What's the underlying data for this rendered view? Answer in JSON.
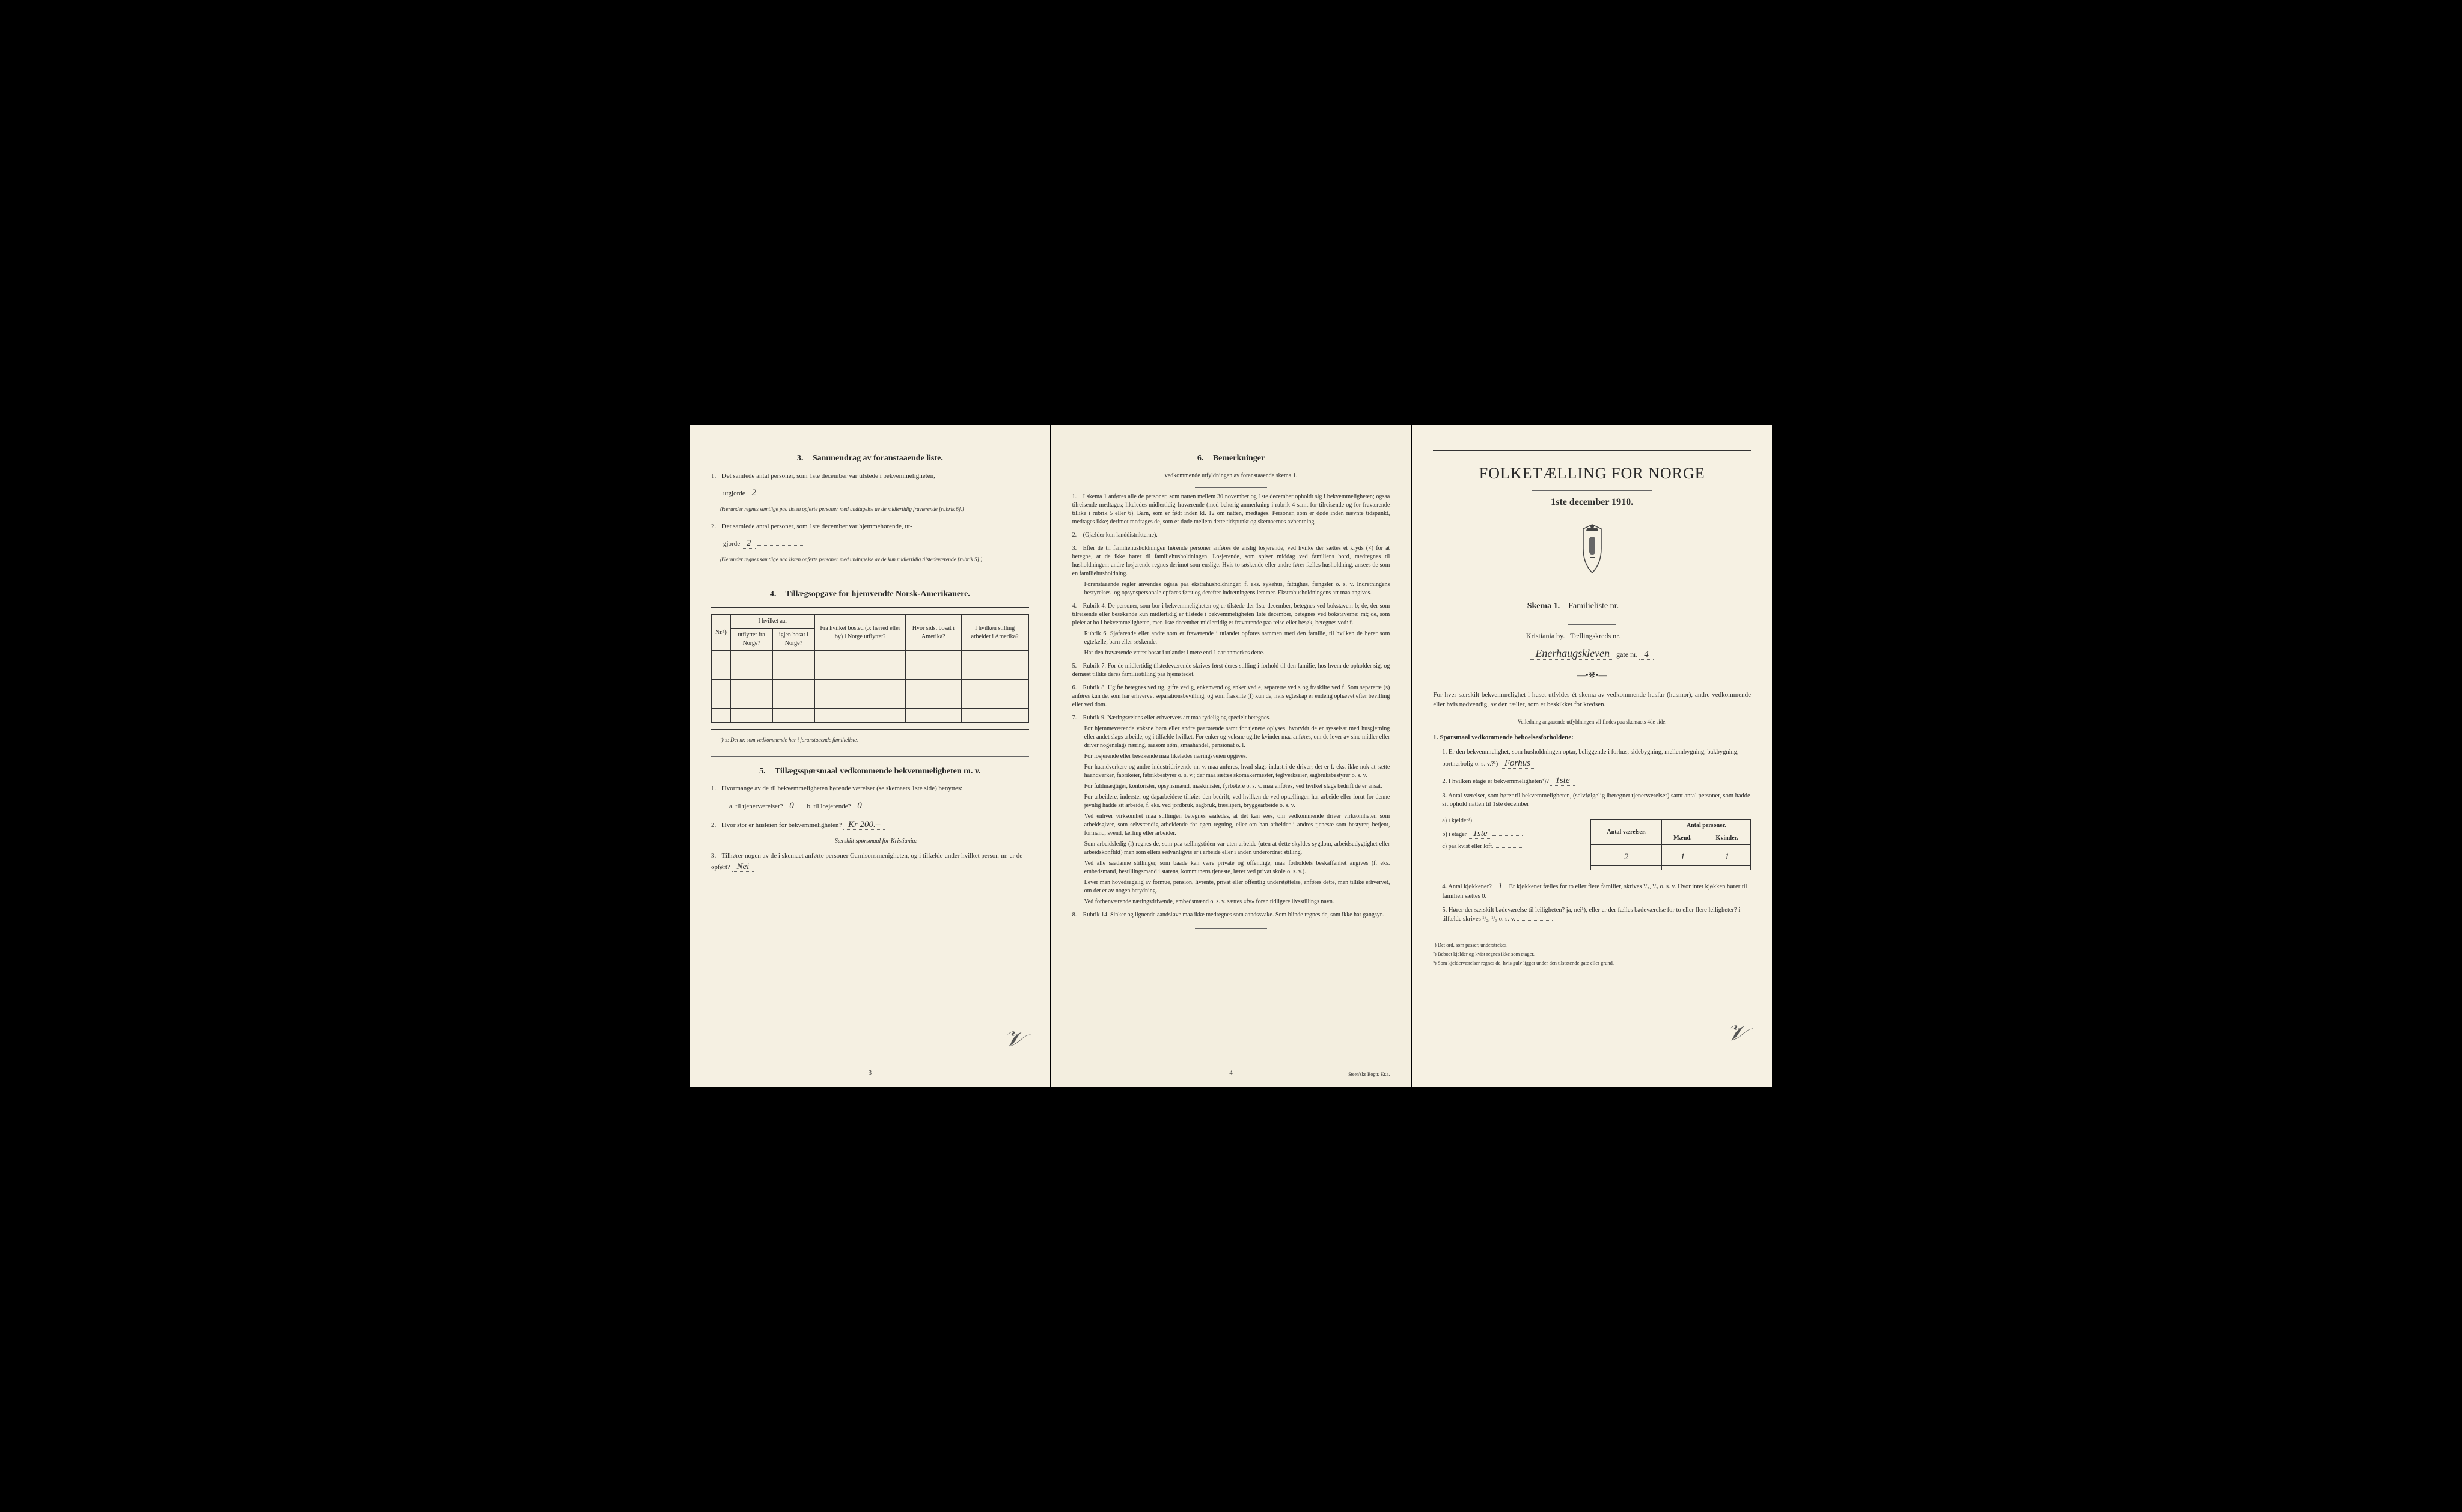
{
  "colors": {
    "paper": "#f4efe0",
    "text": "#2a2a2a",
    "border": "#333333",
    "background": "#000000"
  },
  "left": {
    "s3": {
      "title": "Sammendrag av foranstaaende liste.",
      "num": "3.",
      "item1": "Det samlede antal personer, som 1ste december var tilstede i bekvemmeligheten,",
      "item1_cont": "utgjorde",
      "val1": "2",
      "note1": "(Herunder regnes samtlige paa listen opførte personer med undtagelse av de midlertidig fraværende [rubrik 6].)",
      "item2": "Det samlede antal personer, som 1ste december var hjemmehørende, ut-",
      "item2_cont": "gjorde",
      "val2": "2",
      "note2": "(Herunder regnes samtlige paa listen opførte personer med undtagelse av de kun midlertidig tilstedeværende [rubrik 5].)"
    },
    "s4": {
      "title": "Tillægsopgave for hjemvendte Norsk-Amerikanere.",
      "num": "4.",
      "headers": {
        "nr": "Nr.¹)",
        "aar": "I hvilket aar",
        "utflyttet": "utflyttet fra Norge?",
        "bosat": "igjen bosat i Norge?",
        "bosted": "Fra hvilket bosted (ɔ: herred eller by) i Norge utflyttet?",
        "amerika": "Hvor sidst bosat i Amerika?",
        "stilling": "I hvilken stilling arbeidet i Amerika?"
      },
      "footnote": "¹) ɔ: Det nr. som vedkommende har i foranstaaende familieliste."
    },
    "s5": {
      "title": "Tillægsspørsmaal vedkommende bekvemmeligheten m. v.",
      "num": "5.",
      "q1": "Hvormange av de til bekvemmeligheten hørende værelser (se skemaets 1ste side) benyttes:",
      "q1a": "a.  til tjenerværelser?",
      "q1a_val": "0",
      "q1b": "b.  til losjerende?",
      "q1b_val": "0",
      "q2": "Hvor stor er husleien for bekvemmeligheten?",
      "q2_val": "Kr 200.–",
      "q2_note": "Særskilt spørsmaal for Kristiania:",
      "q3": "Tilhører nogen av de i skemaet anførte personer Garnisonsmenigheten, og i tilfælde under hvilket person-nr. er de opført?",
      "q3_val": "Nei"
    },
    "page_num": "3"
  },
  "middle": {
    "title": "Bemerkninger",
    "num": "6.",
    "subtitle": "vedkommende utfyldningen av foranstaaende skema 1.",
    "remarks": [
      {
        "n": "1.",
        "text": "I skema 1 anføres alle de personer, som natten mellem 30 november og 1ste december opholdt sig i bekvemmeligheten; ogsaa tilreisende medtages; likeledes midlertidig fraværende (med behørig anmerkning i rubrik 4 samt for tilreisende og for fraværende tillike i rubrik 5 eller 6). Barn, som er født inden kl. 12 om natten, medtages. Personer, som er døde inden nævnte tidspunkt, medtages ikke; derimot medtages de, som er døde mellem dette tidspunkt og skemaernes avhentning."
      },
      {
        "n": "2.",
        "text": "(Gjælder kun landdistrikterne)."
      },
      {
        "n": "3.",
        "text": "Efter de til familiehusholdningen hørende personer anføres de enslig losjerende, ved hvilke der sættes et kryds (×) for at betegne, at de ikke hører til familiehusholdningen. Losjerende, som spiser middag ved familiens bord, medregnes til husholdningen; andre losjerende regnes derimot som enslige. Hvis to søskende eller andre fører fælles husholdning, ansees de som en familiehusholdning.",
        "indent": "Foranstaaende regler anvendes ogsaa paa ekstrahusholdninger, f. eks. sykehus, fattighus, fængsler o. s. v. Indretningens bestyrelses- og opsynspersonale opføres først og derefter indretningens lemmer. Ekstrahusholdningens art maa angives."
      },
      {
        "n": "4.",
        "text": "Rubrik 4. De personer, som bor i bekvemmeligheten og er tilstede der 1ste december, betegnes ved bokstaven: b; de, der som tilreisende eller besøkende kun midlertidig er tilstede i bekvemmeligheten 1ste december, betegnes ved bokstaverne: mt; de, som pleier at bo i bekvemmeligheten, men 1ste december midlertidig er fraværende paa reise eller besøk, betegnes ved: f.",
        "indent": "Rubrik 6. Sjøfarende eller andre som er fraværende i utlandet opføres sammen med den familie, til hvilken de hører som egtefælle, barn eller søskende.\nHar den fraværende været bosat i utlandet i mere end 1 aar anmerkes dette."
      },
      {
        "n": "5.",
        "text": "Rubrik 7. For de midlertidig tilstedeværende skrives først deres stilling i forhold til den familie, hos hvem de opholder sig, og dernæst tillike deres familiestilling paa hjemstedet."
      },
      {
        "n": "6.",
        "text": "Rubrik 8. Ugifte betegnes ved ug, gifte ved g, enkemænd og enker ved e, separerte ved s og fraskilte ved f. Som separerte (s) anføres kun de, som har erhvervet separationsbevilling, og som fraskilte (f) kun de, hvis egteskap er endelig ophævet efter bevilling eller ved dom."
      },
      {
        "n": "7.",
        "text": "Rubrik 9. Næringsveiens eller erhvervets art maa tydelig og specielt betegnes.",
        "indent": "For hjemmeværende voksne børn eller andre paarørende samt for tjenere oplyses, hvorvidt de er sysselsat med husgjerning eller andet slags arbeide, og i tilfælde hvilket. For enker og voksne ugifte kvinder maa anføres, om de lever av sine midler eller driver nogenslags næring, saasom søm, smaahandel, pensionat o. l.\nFor losjerende eller besøkende maa likeledes næringsveien opgives.\nFor haandverkere og andre industridrivende m. v. maa anføres, hvad slags industri de driver; det er f. eks. ikke nok at sætte haandverker, fabrikeier, fabrikbestyrer o. s. v.; der maa sættes skomakermester, teglverkseier, sagbruksbestyrer o. s. v.\nFor fuldmægtiger, kontorister, opsynsmænd, maskinister, fyrbøtere o. s. v. maa anføres, ved hvilket slags bedrift de er ansat.\nFor arbeidere, inderster og dagarbeidere tilføies den bedrift, ved hvilken de ved optællingen har arbeide eller forut for denne jevnlig hadde sit arbeide, f. eks. ved jordbruk, sagbruk, træsliperi, bryggearbeide o. s. v.\nVed enhver virksomhet maa stillingen betegnes saaledes, at det kan sees, om vedkommende driver virksomheten som arbeidsgiver, som selvstændig arbeidende for egen regning, eller om han arbeider i andres tjeneste som bestyrer, betjent, formand, svend, lærling eller arbeider.\nSom arbeidsledig (l) regnes de, som paa tællingstiden var uten arbeide (uten at dette skyldes sygdom, arbeidsudygtighet eller arbeidskonflikt) men som ellers sedvanligvis er i arbeide eller i anden underordnet stilling.\nVed alle saadanne stillinger, som baade kan være private og offentlige, maa forholdets beskaffenhet angives (f. eks. embedsmand, bestillingsmand i statens, kommunens tjeneste, lærer ved privat skole o. s. v.).\nLever man hovedsagelig av formue, pension, livrente, privat eller offentlig understøttelse, anføres dette, men tillike erhvervet, om det er av nogen betydning.\nVed forhenværende næringsdrivende, embedsmænd o. s. v. sættes «fv» foran tidligere livsstillings navn."
      },
      {
        "n": "8.",
        "text": "Rubrik 14. Sinker og lignende aandsløve maa ikke medregnes som aandssvake. Som blinde regnes de, som ikke har gangsyn."
      }
    ],
    "page_num": "4",
    "printer": "Steen'ske Bogtr. Kr.a."
  },
  "right": {
    "title": "FOLKETÆLLING FOR NORGE",
    "date": "1ste december 1910.",
    "skema": "Skema 1.",
    "skema_label": "Familieliste nr.",
    "city": "Kristiania by.",
    "kreds": "Tællingskreds nr.",
    "gate_val": "Enerhaugskleven",
    "gate_suffix": "gate nr.",
    "gate_num": "4",
    "intro": "For hver særskilt bekvemmelighet i huset utfyldes ét skema av vedkommende husfar (husmor), andre vedkommende eller hvis nødvendig, av den tæller, som er beskikket for kredsen.",
    "intro_note": "Veiledning angaaende utfyldningen vil findes paa skemaets 4de side.",
    "q1_title": "Spørsmaal vedkommende beboelsesforholdene:",
    "q1_num": "1.",
    "q1_1": "Er den bekvemmelighet, som husholdningen optar, beliggende i forhus, sidebygning, mellembygning, bakbygning, portnerbolig o. s. v.?¹)",
    "q1_1_val": "Forhus",
    "q1_2": "I hvilken etage er bekvemmeligheten³)?",
    "q1_2_val": "1ste",
    "q1_3": "Antal værelser, som hører til bekvemmeligheten, (selvfølgelig iberegnet tjenerværelser) samt antal personer, som hadde sit ophold natten til 1ste december",
    "table": {
      "h1": "Antal værelser.",
      "h2": "Antal personer.",
      "h2a": "Mænd.",
      "h2b": "Kvinder.",
      "row_a": "a) i kjelder³)",
      "row_b": "b) i etager",
      "row_b_etage": "1ste",
      "row_b_vaer": "2",
      "row_b_m": "1",
      "row_b_k": "1",
      "row_c": "c) paa kvist eller loft"
    },
    "q1_4": "Antal kjøkkener?",
    "q1_4_val": "1",
    "q1_4_cont": "Er kjøkkenet fælles for to eller flere familier, skrives ¹/₂, ¹/₃ o. s. v. Hvor intet kjøkken hører til familien sættes 0.",
    "q1_5": "Hører der særskilt badeværelse til leiligheten?",
    "q1_5_val": "ja, nei¹)",
    "q1_5_cont": "eller er der fælles badeværelse for to eller flere leiligheter? i tilfælde skrives ¹/₂, ¹/₃ o. s. v.",
    "footnotes": {
      "f1": "¹) Det ord, som passer, understrekes.",
      "f2": "²) Beboet kjelder og kvist regnes ikke som etager.",
      "f3": "³) Som kjelderværelser regnes de, hvis gulv ligger under den tilstøtende gate eller grund."
    }
  }
}
